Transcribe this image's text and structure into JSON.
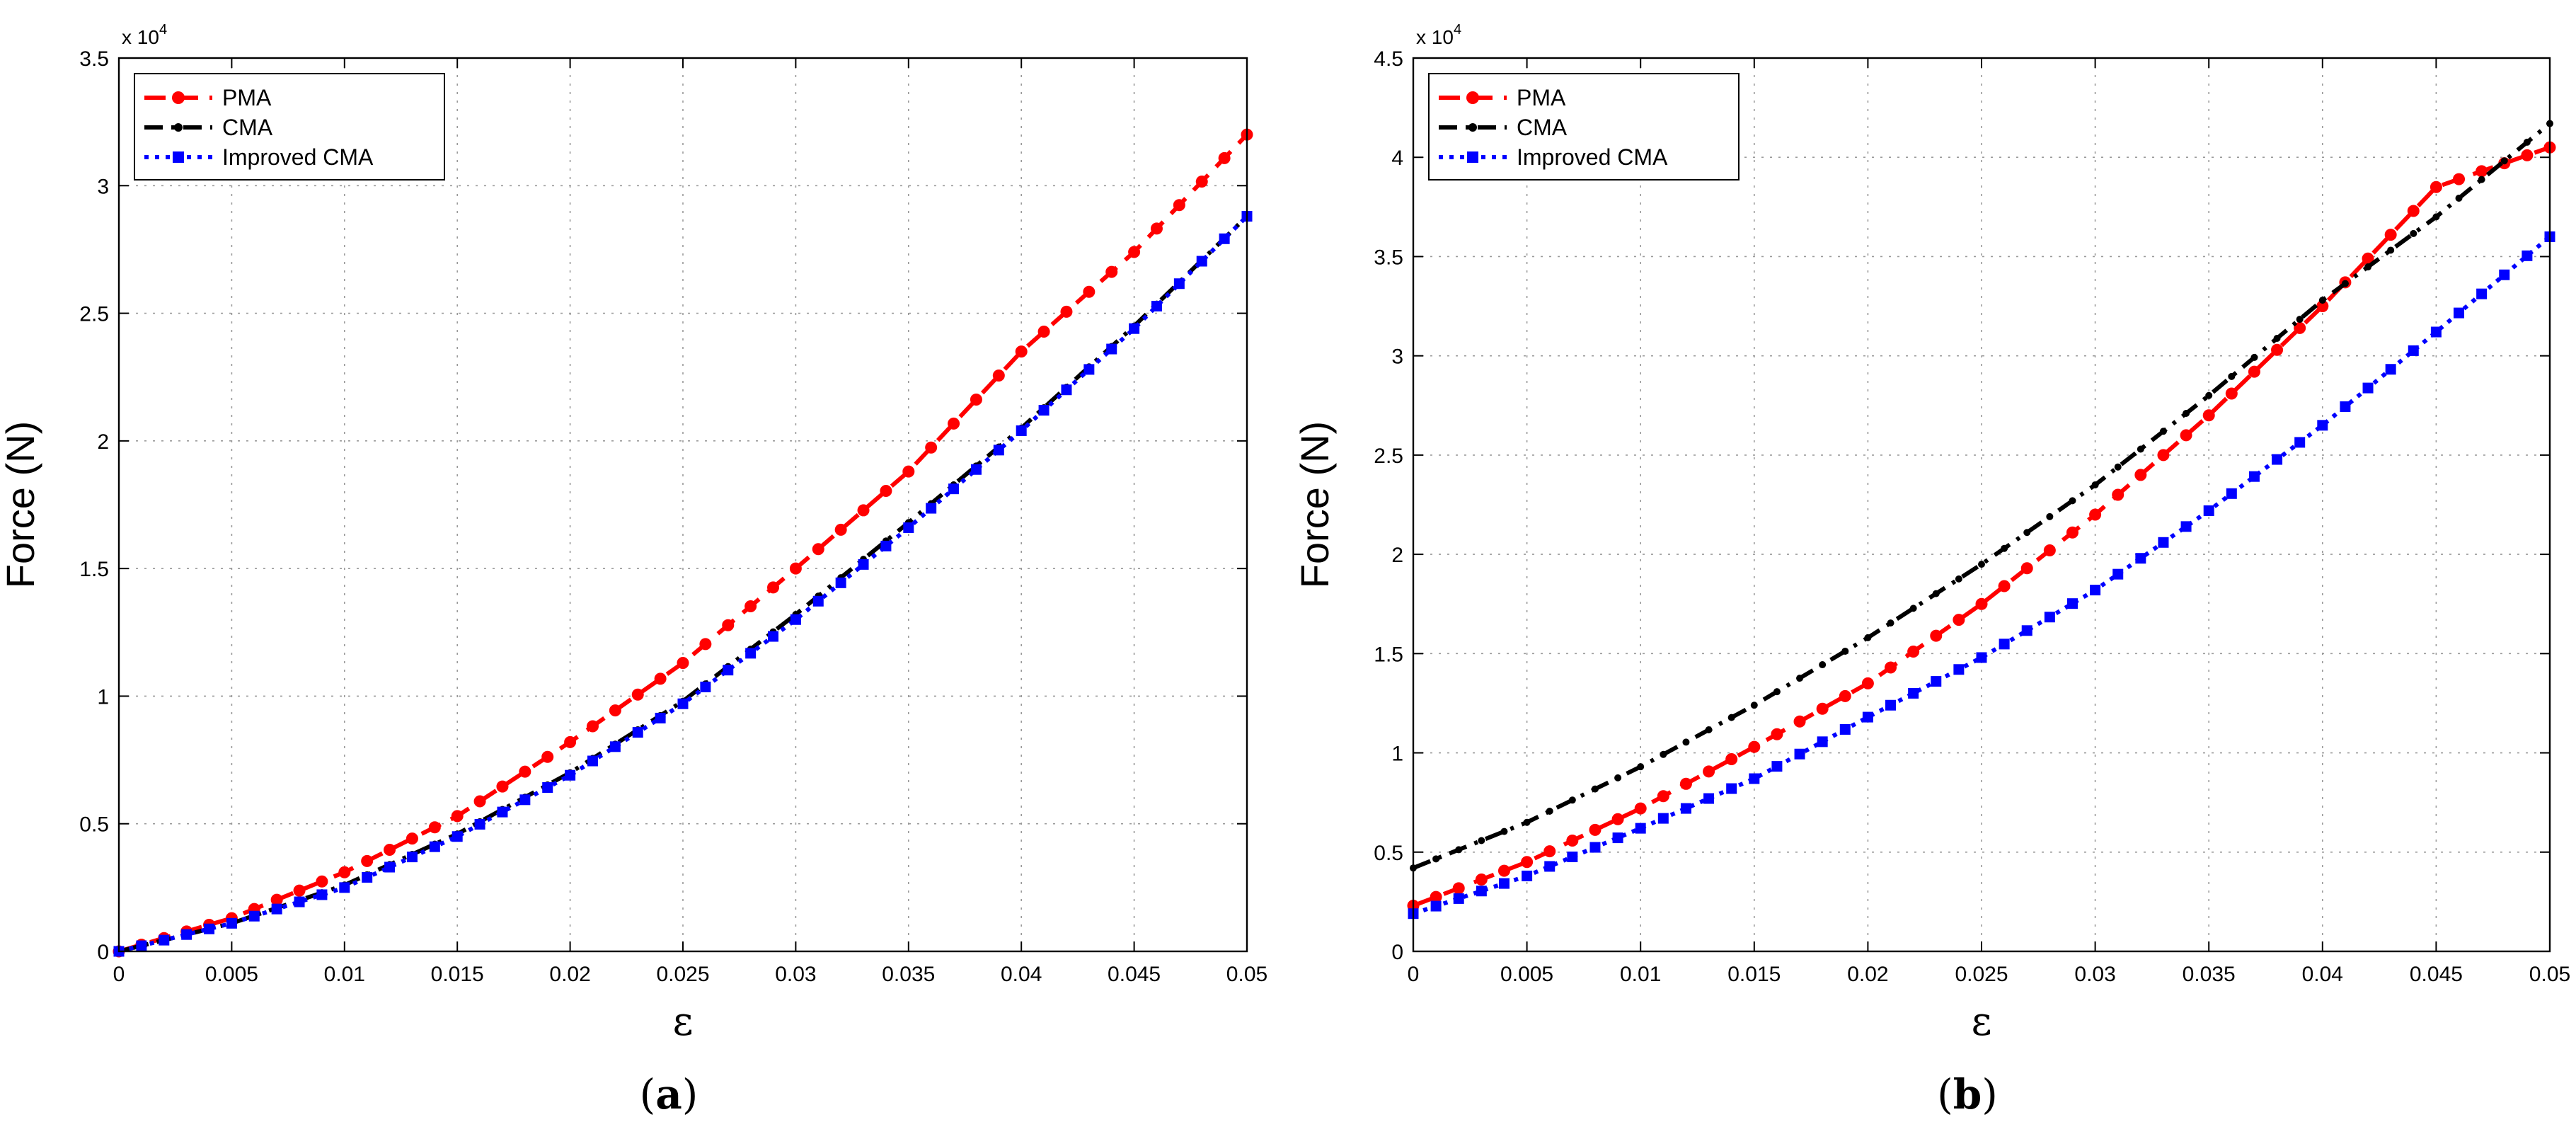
{
  "chart_data": [
    {
      "id": "a",
      "type": "line",
      "caption_letter": "a",
      "caption_open": "(",
      "caption_close": ")",
      "xlabel": "ε",
      "ylabel": "Force (N)",
      "exponent_base": "x 10",
      "exponent_power": "4",
      "xlim": [
        0,
        0.05
      ],
      "ylim": [
        0,
        3.5
      ],
      "xticks": [
        0,
        0.005,
        0.01,
        0.015,
        0.02,
        0.025,
        0.03,
        0.035,
        0.04,
        0.045,
        0.05
      ],
      "xtick_labels": [
        "0",
        "0.005",
        "0.01",
        "0.015",
        "0.02",
        "0.025",
        "0.03",
        "0.035",
        "0.04",
        "0.045",
        "0.05"
      ],
      "yticks": [
        0,
        0.5,
        1,
        1.5,
        2,
        2.5,
        3,
        3.5
      ],
      "ytick_labels": [
        "0",
        "0.5",
        "1",
        "1.5",
        "2",
        "2.5",
        "3",
        "3.5"
      ],
      "grid": true,
      "legend_position": "top-left",
      "series": [
        {
          "name": "PMA",
          "color": "#ff0000",
          "dash": "dashed",
          "marker": "circle",
          "x": [
            0,
            0.005,
            0.01,
            0.015,
            0.02,
            0.025,
            0.03,
            0.035,
            0.04,
            0.045,
            0.05
          ],
          "values": [
            0.0,
            0.13,
            0.31,
            0.53,
            0.82,
            1.13,
            1.5,
            1.88,
            2.35,
            2.74,
            3.2
          ]
        },
        {
          "name": "CMA",
          "color": "#000000",
          "dash": "dashdot",
          "marker": "dot",
          "x": [
            0,
            0.005,
            0.01,
            0.015,
            0.02,
            0.025,
            0.03,
            0.035,
            0.04,
            0.045,
            0.05
          ],
          "values": [
            0.0,
            0.11,
            0.26,
            0.46,
            0.7,
            0.98,
            1.32,
            1.68,
            2.05,
            2.45,
            2.88
          ]
        },
        {
          "name": "Improved CMA",
          "color": "#0000ff",
          "dash": "dotted",
          "marker": "square",
          "x": [
            0,
            0.005,
            0.01,
            0.015,
            0.02,
            0.025,
            0.03,
            0.035,
            0.04,
            0.045,
            0.05
          ],
          "values": [
            0.0,
            0.11,
            0.25,
            0.45,
            0.69,
            0.97,
            1.3,
            1.66,
            2.04,
            2.44,
            2.88
          ]
        }
      ]
    },
    {
      "id": "b",
      "type": "line",
      "caption_letter": "b",
      "caption_open": "(",
      "caption_close": ")",
      "xlabel": "ε",
      "ylabel": "Force (N)",
      "exponent_base": "x 10",
      "exponent_power": "4",
      "xlim": [
        0,
        0.05
      ],
      "ylim": [
        0,
        4.5
      ],
      "xticks": [
        0,
        0.005,
        0.01,
        0.015,
        0.02,
        0.025,
        0.03,
        0.035,
        0.04,
        0.045,
        0.05
      ],
      "xtick_labels": [
        "0",
        "0.005",
        "0.01",
        "0.015",
        "0.02",
        "0.025",
        "0.03",
        "0.035",
        "0.04",
        "0.045",
        "0.05"
      ],
      "yticks": [
        0,
        0.5,
        1,
        1.5,
        2,
        2.5,
        3,
        3.5,
        4,
        4.5
      ],
      "ytick_labels": [
        "0",
        "0.5",
        "1",
        "1.5",
        "2",
        "2.5",
        "3",
        "3.5",
        "4",
        "4.5"
      ],
      "grid": true,
      "legend_position": "top-left",
      "series": [
        {
          "name": "PMA",
          "color": "#ff0000",
          "dash": "dashed",
          "marker": "circle",
          "x": [
            0,
            0.005,
            0.01,
            0.015,
            0.02,
            0.025,
            0.03,
            0.035,
            0.04,
            0.045,
            0.05
          ],
          "values": [
            0.23,
            0.45,
            0.72,
            1.03,
            1.35,
            1.75,
            2.2,
            2.7,
            3.25,
            3.85,
            4.05
          ]
        },
        {
          "name": "CMA",
          "color": "#000000",
          "dash": "dashdot",
          "marker": "dot",
          "x": [
            0,
            0.005,
            0.01,
            0.015,
            0.02,
            0.025,
            0.03,
            0.035,
            0.04,
            0.045,
            0.05
          ],
          "values": [
            0.42,
            0.65,
            0.93,
            1.24,
            1.58,
            1.95,
            2.35,
            2.8,
            3.28,
            3.7,
            4.17
          ]
        },
        {
          "name": "Improved CMA",
          "color": "#0000ff",
          "dash": "dotted",
          "marker": "square",
          "x": [
            0,
            0.005,
            0.01,
            0.015,
            0.02,
            0.025,
            0.03,
            0.035,
            0.04,
            0.045,
            0.05
          ],
          "values": [
            0.19,
            0.38,
            0.62,
            0.87,
            1.18,
            1.48,
            1.82,
            2.22,
            2.65,
            3.12,
            3.6
          ]
        }
      ]
    }
  ]
}
